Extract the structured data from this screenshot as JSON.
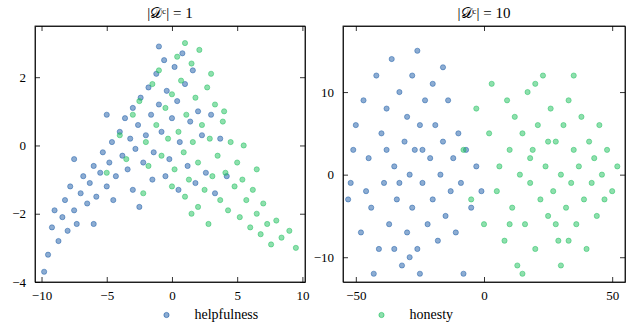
{
  "chart_data": [
    {
      "type": "scatter",
      "title": "|𝒟ᶜ| = 1",
      "marker": "circle",
      "legend": "bottom",
      "xlim": [
        -10.5,
        10.2
      ],
      "ylim": [
        -4,
        3.5
      ],
      "xticks": [
        -10,
        -5,
        0,
        5,
        10
      ],
      "yticks": [
        -4,
        -2,
        0,
        2
      ],
      "series": [
        {
          "name": "helpfulness",
          "color": "#1a5aa6",
          "x": [
            -9.8,
            -9.5,
            -9.2,
            -9,
            -8.7,
            -8.4,
            -8.2,
            -8,
            -7.8,
            -7.5,
            -7.3,
            -7,
            -6.8,
            -6.5,
            -6.3,
            -6,
            -5.8,
            -5.5,
            -5.3,
            -5,
            -4.8,
            -4.6,
            -4.3,
            -4,
            -3.8,
            -3.6,
            -3.4,
            -3.2,
            -3,
            -2.8,
            -2.6,
            -2.4,
            -2.2,
            -2,
            -1.8,
            -1.6,
            -1.4,
            -1.2,
            -1,
            -0.8,
            -0.6,
            -0.4,
            -0.2,
            0,
            0.2,
            0.4,
            0.6,
            0.8,
            1,
            1.2,
            1.4,
            1.6,
            1.8,
            2,
            2.3,
            2.6,
            3,
            3.3,
            3.7,
            4.2,
            -3,
            -1.5,
            -0.5,
            0.5,
            -6,
            -4.5,
            -2.5,
            -7.5,
            -5,
            -1
          ],
          "y": [
            -3.7,
            -3.2,
            -2.4,
            -1.9,
            -2.8,
            -2.1,
            -1.6,
            -2.5,
            -1.2,
            -1.9,
            -2.3,
            -1.4,
            -0.9,
            -1.7,
            -1.1,
            -0.6,
            -1.5,
            -0.8,
            -0.2,
            -1.2,
            -0.5,
            0.1,
            -0.9,
            0.4,
            -0.3,
            0.8,
            -0.7,
            0.2,
            1.1,
            -0.1,
            0.6,
            1.4,
            -0.5,
            0.3,
            1.7,
            0.9,
            -0.2,
            2.1,
            1.2,
            0.4,
            2.5,
            1.6,
            -0.4,
            0.8,
            2.3,
            1.3,
            0.1,
            2.7,
            1.8,
            -0.6,
            0.7,
            2.2,
            -1.1,
            1,
            0.3,
            -0.8,
            0.9,
            -1.4,
            0.2,
            -0.9,
            -1.3,
            -1,
            -0.9,
            -1.3,
            -2.3,
            -1.6,
            -1.8,
            -0.4,
            0.9,
            2.9
          ]
        },
        {
          "name": "honesty",
          "color": "#1dbf5c",
          "x": [
            -5,
            -4,
            -3.5,
            -3,
            -2.5,
            -2,
            -1.8,
            -1.5,
            -1.2,
            -1,
            -0.8,
            -0.5,
            -0.3,
            0,
            0.2,
            0.4,
            0.5,
            0.7,
            0.9,
            1,
            1.1,
            1.3,
            1.5,
            1.6,
            1.8,
            2,
            2.1,
            2.3,
            2.5,
            2.7,
            2.9,
            3.1,
            3.3,
            3.5,
            3.7,
            3.9,
            4.1,
            4.3,
            4.5,
            4.8,
            5,
            5.2,
            5.4,
            5.7,
            6,
            6.2,
            6.5,
            6.8,
            7,
            7.3,
            7.6,
            8,
            8.4,
            9,
            9.5,
            3,
            2,
            1,
            0,
            4,
            5.5,
            6.5,
            -2.2,
            1.5,
            2.8
          ],
          "y": [
            -0.8,
            0.3,
            -0.4,
            0.9,
            1.3,
            0.1,
            -0.6,
            1.8,
            0.6,
            2.2,
            -0.3,
            1.1,
            0.2,
            1.5,
            -0.7,
            2.6,
            0.4,
            1.9,
            -0.2,
            3,
            0.9,
            -1,
            2.4,
            0.1,
            1.4,
            -0.5,
            2.8,
            0.6,
            -1.3,
            1.7,
            0.2,
            -0.9,
            1.2,
            -0.3,
            -1.6,
            0.7,
            -0.8,
            -1.9,
            0.1,
            -1.2,
            -0.5,
            -2.1,
            -1,
            -1.6,
            -2.4,
            -1.3,
            -2,
            -2.6,
            -1.7,
            -2.3,
            -2.9,
            -2.2,
            -2.7,
            -2.5,
            -3,
            2.1,
            -1.8,
            -1.5,
            -1.2,
            1,
            0,
            -0.7,
            -1.4,
            -2,
            -2.3
          ]
        }
      ]
    },
    {
      "type": "scatter",
      "title": "|𝒟ᶜ| = 10",
      "marker": "circle",
      "xlim": [
        -55,
        55
      ],
      "ylim": [
        -13,
        18
      ],
      "xticks": [
        -50,
        0,
        50
      ],
      "yticks": [
        -10,
        0,
        10
      ],
      "series": [
        {
          "name": "helpfulness",
          "color": "#1a5aa6",
          "x": [
            -53,
            -51,
            -52,
            -48,
            -47,
            -45,
            -44,
            -42,
            -41,
            -40,
            -39,
            -38,
            -37,
            -36,
            -35,
            -34,
            -33,
            -32,
            -31,
            -30,
            -30,
            -29,
            -28,
            -28,
            -27,
            -26,
            -26,
            -25,
            -24,
            -23,
            -22,
            -21,
            -20,
            -20,
            -19,
            -18,
            -17,
            -16,
            -15,
            -14,
            -13,
            -12,
            -11,
            -10,
            -9,
            -8,
            -7,
            -5,
            -3,
            -1,
            -43,
            -35,
            -25,
            -50,
            -46,
            -33,
            -24,
            -38,
            -29,
            -16
          ],
          "y": [
            -3,
            3,
            -1,
            -7,
            9,
            2,
            -4,
            12,
            -9,
            5,
            -1,
            8,
            -6,
            14,
            1,
            -3,
            10,
            -11,
            4,
            -7,
            7,
            0,
            12,
            -4,
            3,
            -9,
            15,
            6,
            -1,
            9,
            -6,
            2,
            -3,
            11,
            6,
            -8,
            0,
            4,
            -5,
            9,
            -2,
            2,
            -7,
            5,
            -1,
            -12,
            3,
            -4,
            1,
            -2,
            -12,
            -9,
            -12,
            6,
            -2,
            -1,
            3,
            3,
            -10,
            13
          ]
        },
        {
          "name": "honesty",
          "color": "#1dbf5c",
          "x": [
            -8,
            -5,
            -3,
            0,
            2,
            3,
            5,
            6,
            8,
            9,
            10,
            11,
            12,
            13,
            14,
            15,
            16,
            17,
            18,
            19,
            20,
            21,
            22,
            23,
            24,
            25,
            26,
            27,
            28,
            29,
            30,
            31,
            32,
            33,
            34,
            35,
            36,
            37,
            38,
            39,
            40,
            41,
            42,
            43,
            44,
            45,
            46,
            47,
            48,
            50,
            52,
            20,
            30,
            15,
            35,
            10,
            25,
            33,
            18,
            28
          ],
          "y": [
            3,
            -3,
            8,
            -6,
            5,
            11,
            -2,
            1,
            -8,
            9,
            3,
            -4,
            7,
            -11,
            0,
            5,
            -6,
            10,
            -1,
            3,
            -9,
            6,
            -3,
            12,
            1,
            -5,
            8,
            -2,
            4,
            -8,
            0,
            6,
            -4,
            9,
            -1,
            3,
            -6,
            1,
            7,
            -3,
            -9,
            4,
            -1,
            2,
            -5,
            6,
            0,
            -3,
            3,
            -2,
            1,
            11,
            -11,
            -12,
            12,
            -6,
            4,
            -8,
            2,
            -6
          ]
        }
      ]
    }
  ]
}
